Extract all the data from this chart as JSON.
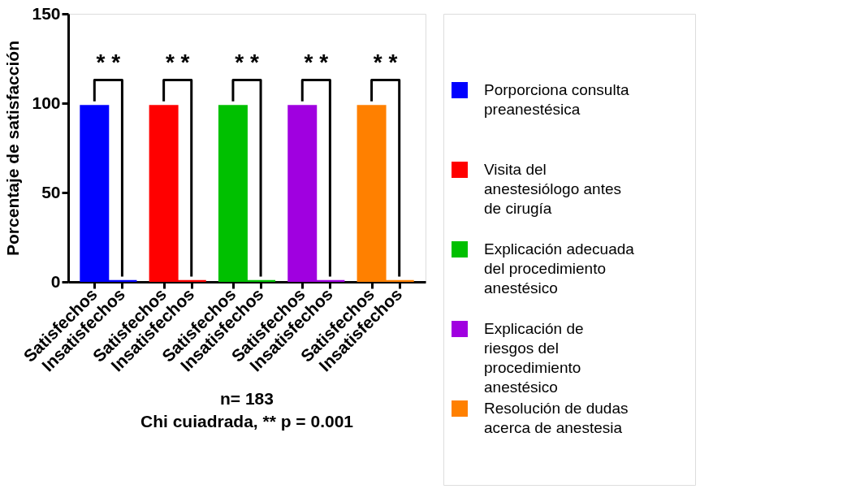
{
  "chart_data": {
    "type": "bar",
    "ylabel": "Porcentaje de satisfacción",
    "categories": [
      "Satisfechos",
      "Insatisfechos",
      "Satisfechos",
      "Insatisfechos",
      "Satisfechos",
      "Insatisfechos",
      "Satisfechos",
      "Insatisfechos",
      "Satisfechos",
      "Insatisfechos"
    ],
    "series": [
      {
        "name": "Porporciona consulta preanestésica",
        "color": "#0000ff",
        "values": [
          99,
          1,
          null,
          null,
          null,
          null,
          null,
          null,
          null,
          null
        ]
      },
      {
        "name": "Visita del anestesiólogo antes de cirugía",
        "color": "#ff0000",
        "values": [
          null,
          null,
          99,
          1,
          null,
          null,
          null,
          null,
          null,
          null
        ]
      },
      {
        "name": "Explicación adecuada del procedimiento anestésico",
        "color": "#00c000",
        "values": [
          null,
          null,
          null,
          null,
          99,
          1,
          null,
          null,
          null,
          null
        ]
      },
      {
        "name": "Explicación de riesgos del procedimiento anestésico",
        "color": "#a000e0",
        "values": [
          null,
          null,
          null,
          null,
          null,
          null,
          99,
          1,
          null,
          null
        ]
      },
      {
        "name": "Resolución de dudas acerca de anestesia",
        "color": "#ff8000",
        "values": [
          null,
          null,
          null,
          null,
          null,
          null,
          null,
          null,
          99,
          1
        ]
      }
    ],
    "ylim": [
      0,
      150
    ],
    "yticks": [
      0,
      50,
      100,
      150
    ],
    "grid": false,
    "legend": "right",
    "annotations": [
      "* *",
      "* *",
      "* *",
      "* *",
      "* *",
      "n= 183",
      "Chi cuiadrada, ** p = 0.001"
    ]
  }
}
